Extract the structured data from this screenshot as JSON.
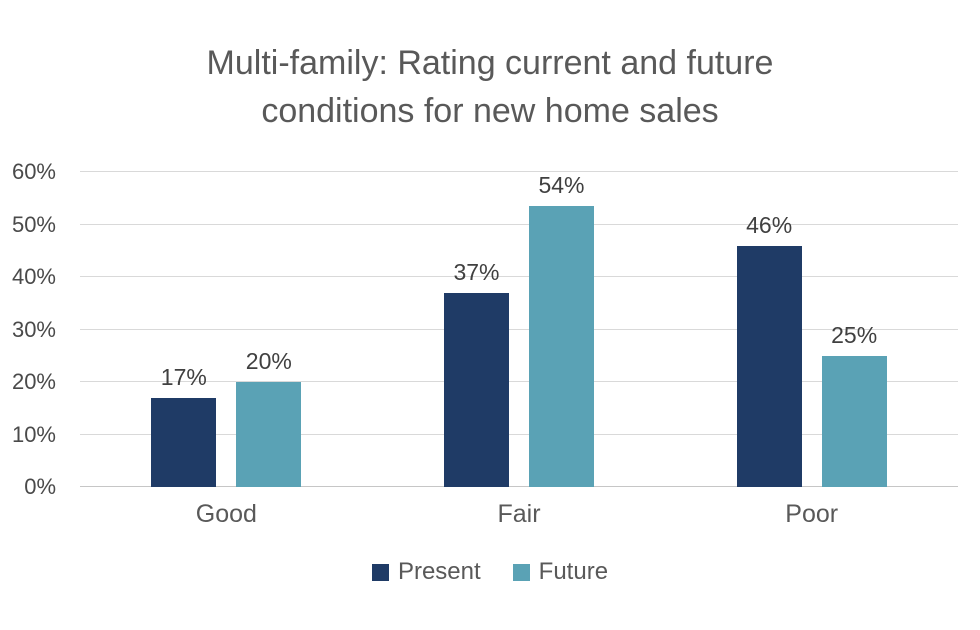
{
  "chart_data": {
    "type": "bar",
    "title": "Multi-family: Rating current and future conditions for new home sales",
    "categories": [
      "Good",
      "Fair",
      "Poor"
    ],
    "series": [
      {
        "name": "Present",
        "color": "#1f3b66",
        "values": [
          17,
          37,
          46
        ],
        "value_labels": [
          "17%",
          "37%",
          "46%"
        ]
      },
      {
        "name": "Future",
        "color": "#5aa2b5",
        "values": [
          20,
          54,
          25
        ],
        "value_labels": [
          "20%",
          "54%",
          "25%"
        ]
      }
    ],
    "ylim": [
      0,
      60
    ],
    "ytick_step": 10,
    "ytick_labels": [
      "0%",
      "10%",
      "20%",
      "30%",
      "40%",
      "50%",
      "60%"
    ],
    "grid": "horizontal",
    "legend_position": "bottom",
    "colors": {
      "title_text": "#595959",
      "axis_text": "#4a4a4a",
      "value_label_text": "#404040",
      "gridline": "#d9d9d9",
      "axis_line": "#c6c6c6",
      "background": "#ffffff"
    }
  }
}
